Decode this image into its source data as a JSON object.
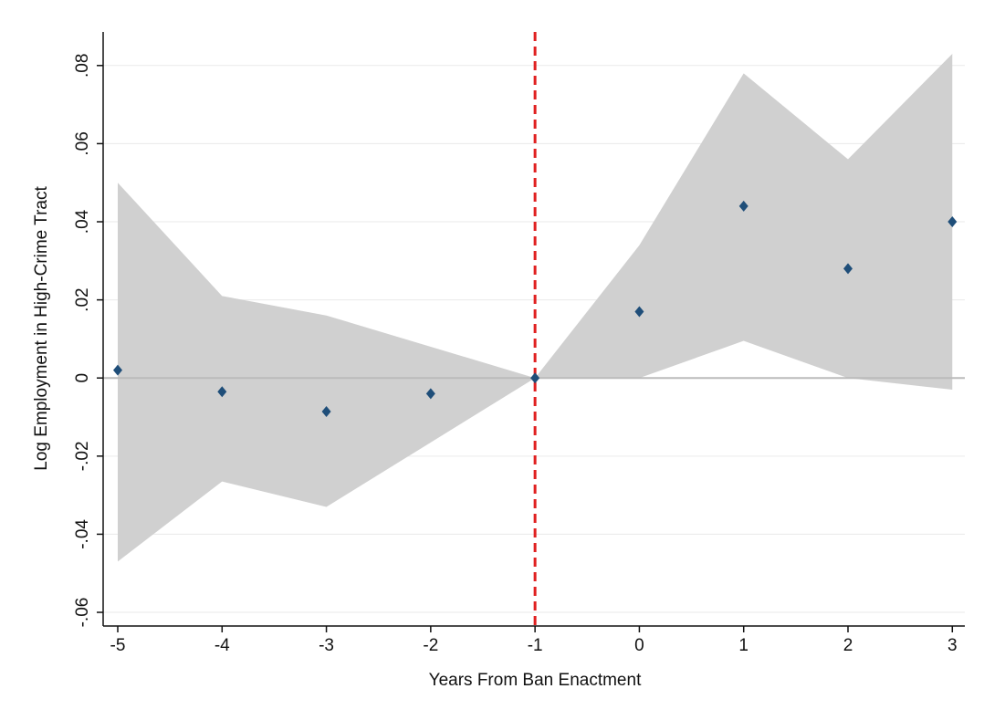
{
  "chart_data": {
    "type": "scatter",
    "x_label": "Years From Ban Enactment",
    "y_label": "Log Employment in High-Crime Tract",
    "x": [
      -5,
      -4,
      -3,
      -2,
      -1,
      0,
      1,
      2,
      3
    ],
    "series": [
      {
        "color": "#1f4e79",
        "values": [
          0.002,
          -0.0035,
          -0.0086,
          -0.004,
          0,
          0.017,
          0.044,
          0.028,
          0.04
        ]
      }
    ],
    "band": {
      "color": "#d0d0d0",
      "upper": [
        0.05,
        0.021,
        0.016,
        0.008,
        0,
        0.034,
        0.078,
        0.056,
        0.083
      ],
      "lower": [
        -0.047,
        -0.0265,
        -0.033,
        -0.0165,
        0,
        0,
        0.0095,
        0,
        -0.003
      ]
    },
    "vline": {
      "x": -1,
      "color": "#e02020"
    },
    "hline": {
      "y": 0,
      "color": "#bbbbbb"
    },
    "xlim": [
      -5.14,
      3.12
    ],
    "ylim": [
      -0.0635,
      0.0886
    ],
    "xticks": [
      -5,
      -4,
      -3,
      -2,
      -1,
      0,
      1,
      2,
      3
    ],
    "yticks": [
      {
        "value": -0.06,
        "label": "-.06"
      },
      {
        "value": -0.04,
        "label": "-.04"
      },
      {
        "value": -0.02,
        "label": "-.02"
      },
      0,
      {
        "value": 0.02,
        "label": ".02"
      },
      {
        "value": 0.04,
        "label": ".04"
      },
      {
        "value": 0.06,
        "label": ".06"
      },
      {
        "value": 0.08,
        "label": ".08"
      }
    ],
    "grid": true
  }
}
